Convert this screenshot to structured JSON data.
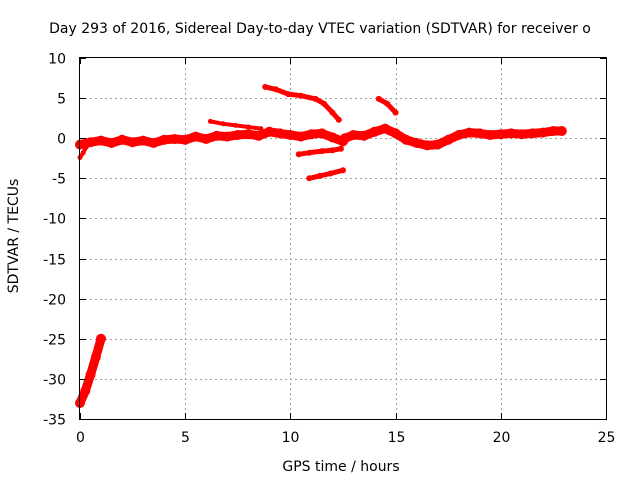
{
  "chart_data": {
    "type": "scatter",
    "title": "Day 293 of 2016, Sidereal Day-to-day VTEC variation (SDTVAR) for receiver o",
    "xlabel": "GPS time / hours",
    "ylabel": "SDTVAR / TECUs",
    "xlim": [
      0,
      25
    ],
    "ylim": [
      -35,
      10
    ],
    "x_ticks": [
      0,
      5,
      10,
      15,
      20,
      25
    ],
    "y_ticks": [
      10,
      5,
      0,
      -5,
      -10,
      -15,
      -20,
      -25,
      -30,
      -35
    ],
    "x_tick_labels": [
      "0",
      "5",
      "10",
      "15",
      "20",
      "25"
    ],
    "y_tick_labels": [
      "10",
      "5",
      "0",
      "-5",
      "-10",
      "-15",
      "-20",
      "-25",
      "-30",
      "-35"
    ],
    "grid": true,
    "color": "#ff0000",
    "series": [
      {
        "name": "main-band",
        "thickness": "wide",
        "points": [
          [
            0,
            -0.8
          ],
          [
            0.5,
            -0.5
          ],
          [
            1,
            -0.3
          ],
          [
            1.5,
            -0.6
          ],
          [
            2,
            -0.2
          ],
          [
            2.5,
            -0.5
          ],
          [
            3,
            -0.3
          ],
          [
            3.5,
            -0.6
          ],
          [
            4,
            -0.2
          ],
          [
            4.5,
            -0.1
          ],
          [
            5,
            -0.2
          ],
          [
            5.5,
            0.2
          ],
          [
            6,
            -0.1
          ],
          [
            6.5,
            0.3
          ],
          [
            7,
            0.2
          ],
          [
            7.5,
            0.4
          ],
          [
            8,
            0.5
          ],
          [
            8.5,
            0.3
          ],
          [
            9,
            0.8
          ],
          [
            9.5,
            0.6
          ],
          [
            10,
            0.4
          ],
          [
            10.5,
            0.2
          ],
          [
            11,
            0.5
          ],
          [
            11.5,
            0.6
          ],
          [
            12,
            0.1
          ],
          [
            12.5,
            -0.4
          ]
        ]
      },
      {
        "name": "main-band-2",
        "thickness": "wide",
        "points": [
          [
            12.6,
            0.0
          ],
          [
            13,
            0.4
          ],
          [
            13.5,
            0.3
          ],
          [
            14,
            0.8
          ],
          [
            14.5,
            1.2
          ],
          [
            15,
            0.6
          ],
          [
            15.5,
            -0.2
          ],
          [
            16,
            -0.6
          ],
          [
            16.5,
            -0.9
          ],
          [
            17,
            -0.8
          ],
          [
            17.5,
            -0.2
          ],
          [
            18,
            0.4
          ],
          [
            18.5,
            0.7
          ],
          [
            19,
            0.6
          ],
          [
            19.5,
            0.4
          ],
          [
            20,
            0.5
          ],
          [
            20.5,
            0.6
          ],
          [
            21,
            0.5
          ],
          [
            21.5,
            0.6
          ],
          [
            22,
            0.7
          ],
          [
            22.5,
            0.9
          ],
          [
            22.9,
            0.9
          ]
        ]
      },
      {
        "name": "low-start",
        "thickness": "wide",
        "points": [
          [
            0,
            -33
          ],
          [
            0.25,
            -31.5
          ],
          [
            0.5,
            -29.5
          ],
          [
            0.75,
            -27.3
          ],
          [
            1.0,
            -25
          ]
        ]
      },
      {
        "name": "start-drop",
        "thickness": "thin",
        "points": [
          [
            0,
            -2.4
          ],
          [
            0.15,
            -1.8
          ],
          [
            0.3,
            -1.1
          ]
        ]
      },
      {
        "name": "arc-upper",
        "thickness": "thin",
        "points": [
          [
            6.2,
            2.1
          ],
          [
            6.8,
            1.8
          ],
          [
            7.4,
            1.6
          ],
          [
            8.0,
            1.4
          ],
          [
            8.6,
            1.2
          ]
        ]
      },
      {
        "name": "high-track",
        "thickness": "medium",
        "points": [
          [
            8.8,
            6.4
          ],
          [
            9.3,
            6.1
          ],
          [
            9.9,
            5.5
          ],
          [
            10.5,
            5.3
          ],
          [
            11.2,
            4.9
          ],
          [
            11.6,
            4.3
          ],
          [
            12.0,
            3.2
          ],
          [
            12.3,
            2.3
          ]
        ]
      },
      {
        "name": "high-track-2",
        "thickness": "medium",
        "points": [
          [
            14.2,
            4.9
          ],
          [
            14.6,
            4.3
          ],
          [
            15.0,
            3.2
          ]
        ]
      },
      {
        "name": "mid-negative",
        "thickness": "medium",
        "points": [
          [
            10.4,
            -2.0
          ],
          [
            10.9,
            -1.8
          ],
          [
            11.5,
            -1.6
          ],
          [
            12.0,
            -1.5
          ],
          [
            12.4,
            -1.3
          ]
        ]
      },
      {
        "name": "low-negative",
        "thickness": "medium",
        "points": [
          [
            10.9,
            -5.0
          ],
          [
            11.4,
            -4.7
          ],
          [
            11.9,
            -4.4
          ],
          [
            12.5,
            -4.0
          ]
        ]
      }
    ]
  }
}
